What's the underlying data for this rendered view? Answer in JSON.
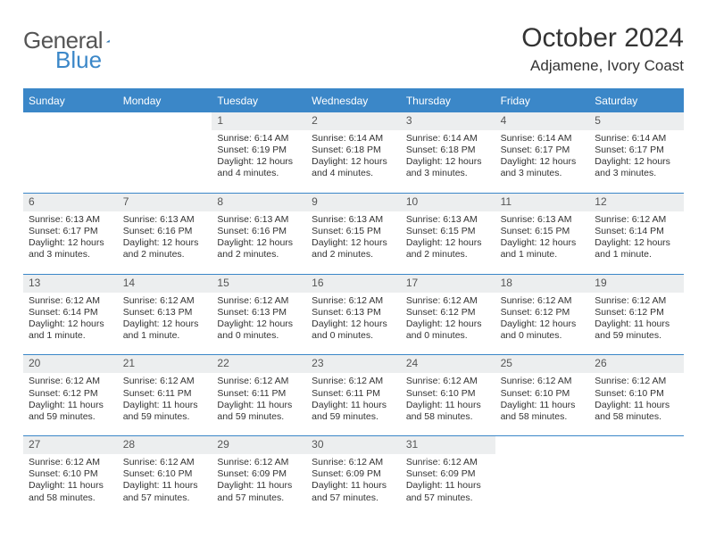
{
  "brand": {
    "text1": "General",
    "text2": "Blue"
  },
  "title": {
    "month": "October 2024",
    "location": "Adjamene, Ivory Coast"
  },
  "colors": {
    "accent": "#3b87c8",
    "header_bg": "#3b87c8",
    "dnum_bg": "#eceeef",
    "text": "#333333",
    "page_bg": "#ffffff"
  },
  "columns": [
    "Sunday",
    "Monday",
    "Tuesday",
    "Wednesday",
    "Thursday",
    "Friday",
    "Saturday"
  ],
  "cells": [
    {
      "day": "",
      "sunrise": "",
      "sunset": "",
      "daylight": ""
    },
    {
      "day": "",
      "sunrise": "",
      "sunset": "",
      "daylight": ""
    },
    {
      "day": "1",
      "sunrise": "6:14 AM",
      "sunset": "6:19 PM",
      "daylight": "12 hours and 4 minutes."
    },
    {
      "day": "2",
      "sunrise": "6:14 AM",
      "sunset": "6:18 PM",
      "daylight": "12 hours and 4 minutes."
    },
    {
      "day": "3",
      "sunrise": "6:14 AM",
      "sunset": "6:18 PM",
      "daylight": "12 hours and 3 minutes."
    },
    {
      "day": "4",
      "sunrise": "6:14 AM",
      "sunset": "6:17 PM",
      "daylight": "12 hours and 3 minutes."
    },
    {
      "day": "5",
      "sunrise": "6:14 AM",
      "sunset": "6:17 PM",
      "daylight": "12 hours and 3 minutes."
    },
    {
      "day": "6",
      "sunrise": "6:13 AM",
      "sunset": "6:17 PM",
      "daylight": "12 hours and 3 minutes."
    },
    {
      "day": "7",
      "sunrise": "6:13 AM",
      "sunset": "6:16 PM",
      "daylight": "12 hours and 2 minutes."
    },
    {
      "day": "8",
      "sunrise": "6:13 AM",
      "sunset": "6:16 PM",
      "daylight": "12 hours and 2 minutes."
    },
    {
      "day": "9",
      "sunrise": "6:13 AM",
      "sunset": "6:15 PM",
      "daylight": "12 hours and 2 minutes."
    },
    {
      "day": "10",
      "sunrise": "6:13 AM",
      "sunset": "6:15 PM",
      "daylight": "12 hours and 2 minutes."
    },
    {
      "day": "11",
      "sunrise": "6:13 AM",
      "sunset": "6:15 PM",
      "daylight": "12 hours and 1 minute."
    },
    {
      "day": "12",
      "sunrise": "6:12 AM",
      "sunset": "6:14 PM",
      "daylight": "12 hours and 1 minute."
    },
    {
      "day": "13",
      "sunrise": "6:12 AM",
      "sunset": "6:14 PM",
      "daylight": "12 hours and 1 minute."
    },
    {
      "day": "14",
      "sunrise": "6:12 AM",
      "sunset": "6:13 PM",
      "daylight": "12 hours and 1 minute."
    },
    {
      "day": "15",
      "sunrise": "6:12 AM",
      "sunset": "6:13 PM",
      "daylight": "12 hours and 0 minutes."
    },
    {
      "day": "16",
      "sunrise": "6:12 AM",
      "sunset": "6:13 PM",
      "daylight": "12 hours and 0 minutes."
    },
    {
      "day": "17",
      "sunrise": "6:12 AM",
      "sunset": "6:12 PM",
      "daylight": "12 hours and 0 minutes."
    },
    {
      "day": "18",
      "sunrise": "6:12 AM",
      "sunset": "6:12 PM",
      "daylight": "12 hours and 0 minutes."
    },
    {
      "day": "19",
      "sunrise": "6:12 AM",
      "sunset": "6:12 PM",
      "daylight": "11 hours and 59 minutes."
    },
    {
      "day": "20",
      "sunrise": "6:12 AM",
      "sunset": "6:12 PM",
      "daylight": "11 hours and 59 minutes."
    },
    {
      "day": "21",
      "sunrise": "6:12 AM",
      "sunset": "6:11 PM",
      "daylight": "11 hours and 59 minutes."
    },
    {
      "day": "22",
      "sunrise": "6:12 AM",
      "sunset": "6:11 PM",
      "daylight": "11 hours and 59 minutes."
    },
    {
      "day": "23",
      "sunrise": "6:12 AM",
      "sunset": "6:11 PM",
      "daylight": "11 hours and 59 minutes."
    },
    {
      "day": "24",
      "sunrise": "6:12 AM",
      "sunset": "6:10 PM",
      "daylight": "11 hours and 58 minutes."
    },
    {
      "day": "25",
      "sunrise": "6:12 AM",
      "sunset": "6:10 PM",
      "daylight": "11 hours and 58 minutes."
    },
    {
      "day": "26",
      "sunrise": "6:12 AM",
      "sunset": "6:10 PM",
      "daylight": "11 hours and 58 minutes."
    },
    {
      "day": "27",
      "sunrise": "6:12 AM",
      "sunset": "6:10 PM",
      "daylight": "11 hours and 58 minutes."
    },
    {
      "day": "28",
      "sunrise": "6:12 AM",
      "sunset": "6:10 PM",
      "daylight": "11 hours and 57 minutes."
    },
    {
      "day": "29",
      "sunrise": "6:12 AM",
      "sunset": "6:09 PM",
      "daylight": "11 hours and 57 minutes."
    },
    {
      "day": "30",
      "sunrise": "6:12 AM",
      "sunset": "6:09 PM",
      "daylight": "11 hours and 57 minutes."
    },
    {
      "day": "31",
      "sunrise": "6:12 AM",
      "sunset": "6:09 PM",
      "daylight": "11 hours and 57 minutes."
    },
    {
      "day": "",
      "sunrise": "",
      "sunset": "",
      "daylight": ""
    },
    {
      "day": "",
      "sunrise": "",
      "sunset": "",
      "daylight": ""
    }
  ],
  "labels": {
    "sunrise": "Sunrise: ",
    "sunset": "Sunset: ",
    "daylight": "Daylight: "
  }
}
